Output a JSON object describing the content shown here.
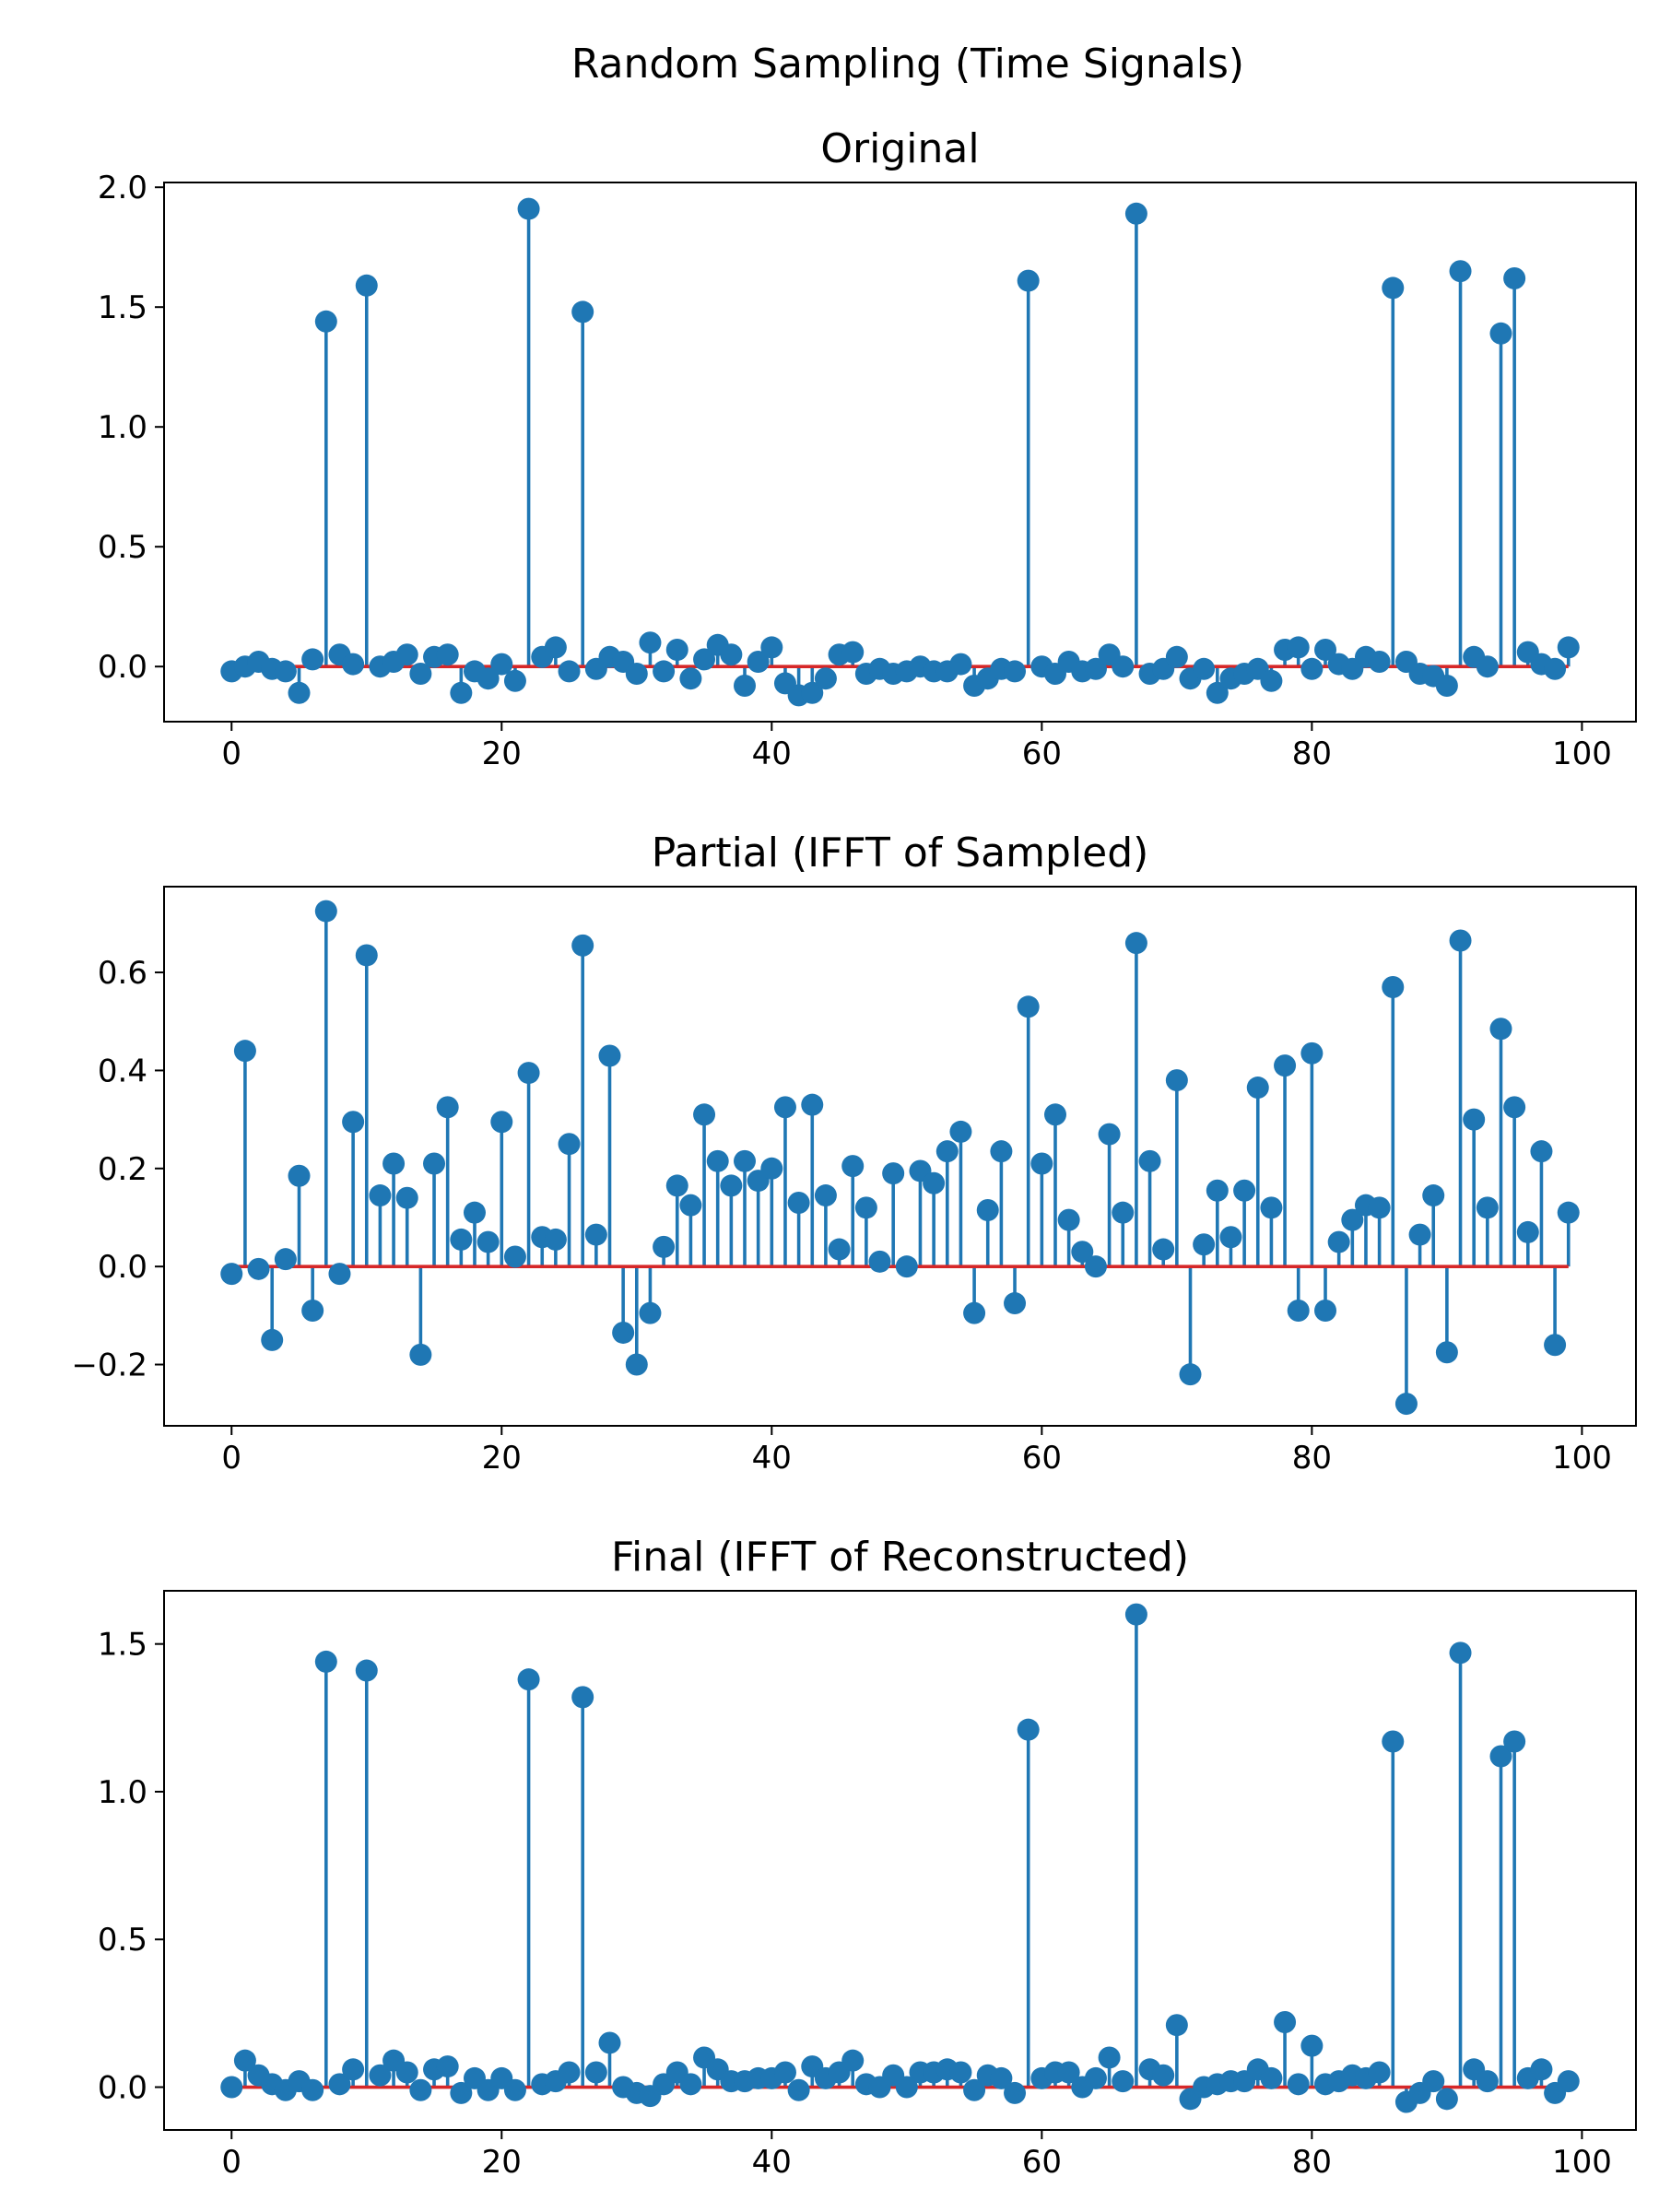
{
  "figure": {
    "title": "Random Sampling (Time Signals)"
  },
  "colors": {
    "stem": "#1f77b4",
    "baseline": "#d62728"
  },
  "chart_data": [
    {
      "type": "stem",
      "title": "Original",
      "xlabel": "",
      "ylabel": "",
      "xlim": [
        -5,
        104
      ],
      "ylim": [
        -0.23,
        2.02
      ],
      "xticks": [
        0,
        20,
        40,
        60,
        80,
        100
      ],
      "xtick_labels": [
        "0",
        "20",
        "40",
        "60",
        "80",
        "100"
      ],
      "yticks": [
        0.0,
        0.5,
        1.0,
        1.5,
        2.0
      ],
      "ytick_labels": [
        "0.0",
        "0.5",
        "1.0",
        "1.5",
        "2.0"
      ],
      "x": [
        0,
        1,
        2,
        3,
        4,
        5,
        6,
        7,
        8,
        9,
        10,
        11,
        12,
        13,
        14,
        15,
        16,
        17,
        18,
        19,
        20,
        21,
        22,
        23,
        24,
        25,
        26,
        27,
        28,
        29,
        30,
        31,
        32,
        33,
        34,
        35,
        36,
        37,
        38,
        39,
        40,
        41,
        42,
        43,
        44,
        45,
        46,
        47,
        48,
        49,
        50,
        51,
        52,
        53,
        54,
        55,
        56,
        57,
        58,
        59,
        60,
        61,
        62,
        63,
        64,
        65,
        66,
        67,
        68,
        69,
        70,
        71,
        72,
        73,
        74,
        75,
        76,
        77,
        78,
        79,
        80,
        81,
        82,
        83,
        84,
        85,
        86,
        87,
        88,
        89,
        90,
        91,
        92,
        93,
        94,
        95,
        96,
        97,
        98,
        99
      ],
      "values": [
        -0.02,
        0.0,
        0.02,
        -0.01,
        -0.02,
        -0.11,
        0.03,
        1.44,
        0.05,
        0.01,
        1.59,
        0.0,
        0.02,
        0.05,
        -0.03,
        0.04,
        0.05,
        -0.11,
        -0.02,
        -0.05,
        0.01,
        -0.06,
        1.91,
        0.04,
        0.08,
        -0.02,
        1.48,
        -0.01,
        0.04,
        0.02,
        -0.03,
        0.1,
        -0.02,
        0.07,
        -0.05,
        0.03,
        0.09,
        0.05,
        -0.08,
        0.02,
        0.08,
        -0.07,
        -0.12,
        -0.11,
        -0.05,
        0.05,
        0.06,
        -0.03,
        -0.01,
        -0.03,
        -0.02,
        0.0,
        -0.02,
        -0.02,
        0.01,
        -0.08,
        -0.05,
        -0.01,
        -0.02,
        1.61,
        0.0,
        -0.03,
        0.02,
        -0.02,
        -0.01,
        0.05,
        0.0,
        1.89,
        -0.03,
        -0.01,
        0.04,
        -0.05,
        -0.01,
        -0.11,
        -0.05,
        -0.03,
        -0.01,
        -0.06,
        0.07,
        0.08,
        -0.01,
        0.07,
        0.01,
        -0.01,
        0.04,
        0.02,
        1.58,
        0.02,
        -0.03,
        -0.04,
        -0.08,
        1.65,
        0.04,
        0.0,
        1.39,
        1.62,
        0.06,
        0.01,
        -0.01,
        0.08
      ]
    },
    {
      "type": "stem",
      "title": "Partial (IFFT of Sampled)",
      "xlabel": "",
      "ylabel": "",
      "xlim": [
        -5,
        104
      ],
      "ylim": [
        -0.325,
        0.775
      ],
      "xticks": [
        0,
        20,
        40,
        60,
        80,
        100
      ],
      "xtick_labels": [
        "0",
        "20",
        "40",
        "60",
        "80",
        "100"
      ],
      "yticks": [
        -0.2,
        0.0,
        0.2,
        0.4,
        0.6
      ],
      "ytick_labels": [
        "−0.2",
        "0.0",
        "0.2",
        "0.4",
        "0.6"
      ],
      "x": [
        0,
        1,
        2,
        3,
        4,
        5,
        6,
        7,
        8,
        9,
        10,
        11,
        12,
        13,
        14,
        15,
        16,
        17,
        18,
        19,
        20,
        21,
        22,
        23,
        24,
        25,
        26,
        27,
        28,
        29,
        30,
        31,
        32,
        33,
        34,
        35,
        36,
        37,
        38,
        39,
        40,
        41,
        42,
        43,
        44,
        45,
        46,
        47,
        48,
        49,
        50,
        51,
        52,
        53,
        54,
        55,
        56,
        57,
        58,
        59,
        60,
        61,
        62,
        63,
        64,
        65,
        66,
        67,
        68,
        69,
        70,
        71,
        72,
        73,
        74,
        75,
        76,
        77,
        78,
        79,
        80,
        81,
        82,
        83,
        84,
        85,
        86,
        87,
        88,
        89,
        90,
        91,
        92,
        93,
        94,
        95,
        96,
        97,
        98,
        99
      ],
      "values": [
        -0.015,
        0.44,
        -0.005,
        -0.15,
        0.015,
        0.185,
        -0.09,
        0.725,
        -0.015,
        0.295,
        0.635,
        0.145,
        0.21,
        0.14,
        -0.18,
        0.21,
        0.325,
        0.055,
        0.11,
        0.05,
        0.295,
        0.02,
        0.395,
        0.06,
        0.055,
        0.25,
        0.655,
        0.065,
        0.43,
        -0.135,
        -0.2,
        -0.095,
        0.04,
        0.165,
        0.125,
        0.31,
        0.215,
        0.165,
        0.215,
        0.175,
        0.2,
        0.325,
        0.13,
        0.33,
        0.145,
        0.035,
        0.205,
        0.12,
        0.01,
        0.19,
        0.0,
        0.195,
        0.17,
        0.235,
        0.275,
        -0.095,
        0.115,
        0.235,
        -0.075,
        0.53,
        0.21,
        0.31,
        0.095,
        0.03,
        0.0,
        0.27,
        0.11,
        0.66,
        0.215,
        0.035,
        0.38,
        -0.22,
        0.045,
        0.155,
        0.06,
        0.155,
        0.365,
        0.12,
        0.41,
        -0.09,
        0.435,
        -0.09,
        0.05,
        0.095,
        0.125,
        0.12,
        0.57,
        -0.28,
        0.065,
        0.145,
        -0.175,
        0.665,
        0.3,
        0.12,
        0.485,
        0.325,
        0.07,
        0.235,
        -0.16,
        0.11
      ]
    },
    {
      "type": "stem",
      "title": "Final (IFFT of Reconstructed)",
      "xlabel": "",
      "ylabel": "",
      "xlim": [
        -5,
        104
      ],
      "ylim": [
        -0.145,
        1.68
      ],
      "xticks": [
        0,
        20,
        40,
        60,
        80,
        100
      ],
      "xtick_labels": [
        "0",
        "20",
        "40",
        "60",
        "80",
        "100"
      ],
      "yticks": [
        0.0,
        0.5,
        1.0,
        1.5
      ],
      "ytick_labels": [
        "0.0",
        "0.5",
        "1.0",
        "1.5"
      ],
      "x": [
        0,
        1,
        2,
        3,
        4,
        5,
        6,
        7,
        8,
        9,
        10,
        11,
        12,
        13,
        14,
        15,
        16,
        17,
        18,
        19,
        20,
        21,
        22,
        23,
        24,
        25,
        26,
        27,
        28,
        29,
        30,
        31,
        32,
        33,
        34,
        35,
        36,
        37,
        38,
        39,
        40,
        41,
        42,
        43,
        44,
        45,
        46,
        47,
        48,
        49,
        50,
        51,
        52,
        53,
        54,
        55,
        56,
        57,
        58,
        59,
        60,
        61,
        62,
        63,
        64,
        65,
        66,
        67,
        68,
        69,
        70,
        71,
        72,
        73,
        74,
        75,
        76,
        77,
        78,
        79,
        80,
        81,
        82,
        83,
        84,
        85,
        86,
        87,
        88,
        89,
        90,
        91,
        92,
        93,
        94,
        95,
        96,
        97,
        98,
        99
      ],
      "values": [
        0.0,
        0.09,
        0.04,
        0.01,
        -0.01,
        0.02,
        -0.01,
        1.44,
        0.01,
        0.06,
        1.41,
        0.04,
        0.09,
        0.05,
        -0.01,
        0.06,
        0.07,
        -0.02,
        0.03,
        -0.01,
        0.03,
        -0.01,
        1.38,
        0.01,
        0.02,
        0.05,
        1.32,
        0.05,
        0.15,
        0.0,
        -0.02,
        -0.03,
        0.01,
        0.05,
        0.01,
        0.1,
        0.06,
        0.02,
        0.02,
        0.03,
        0.03,
        0.05,
        -0.01,
        0.07,
        0.03,
        0.05,
        0.09,
        0.01,
        0.0,
        0.04,
        0.0,
        0.05,
        0.05,
        0.06,
        0.05,
        -0.01,
        0.04,
        0.03,
        -0.02,
        1.21,
        0.03,
        0.05,
        0.05,
        0.0,
        0.03,
        0.1,
        0.02,
        1.6,
        0.06,
        0.04,
        0.21,
        -0.04,
        0.0,
        0.01,
        0.02,
        0.02,
        0.06,
        0.03,
        0.22,
        0.01,
        0.14,
        0.01,
        0.02,
        0.04,
        0.03,
        0.05,
        1.17,
        -0.05,
        -0.02,
        0.02,
        -0.04,
        1.47,
        0.06,
        0.02,
        1.12,
        1.17,
        0.03,
        0.06,
        -0.02,
        0.02
      ]
    }
  ]
}
